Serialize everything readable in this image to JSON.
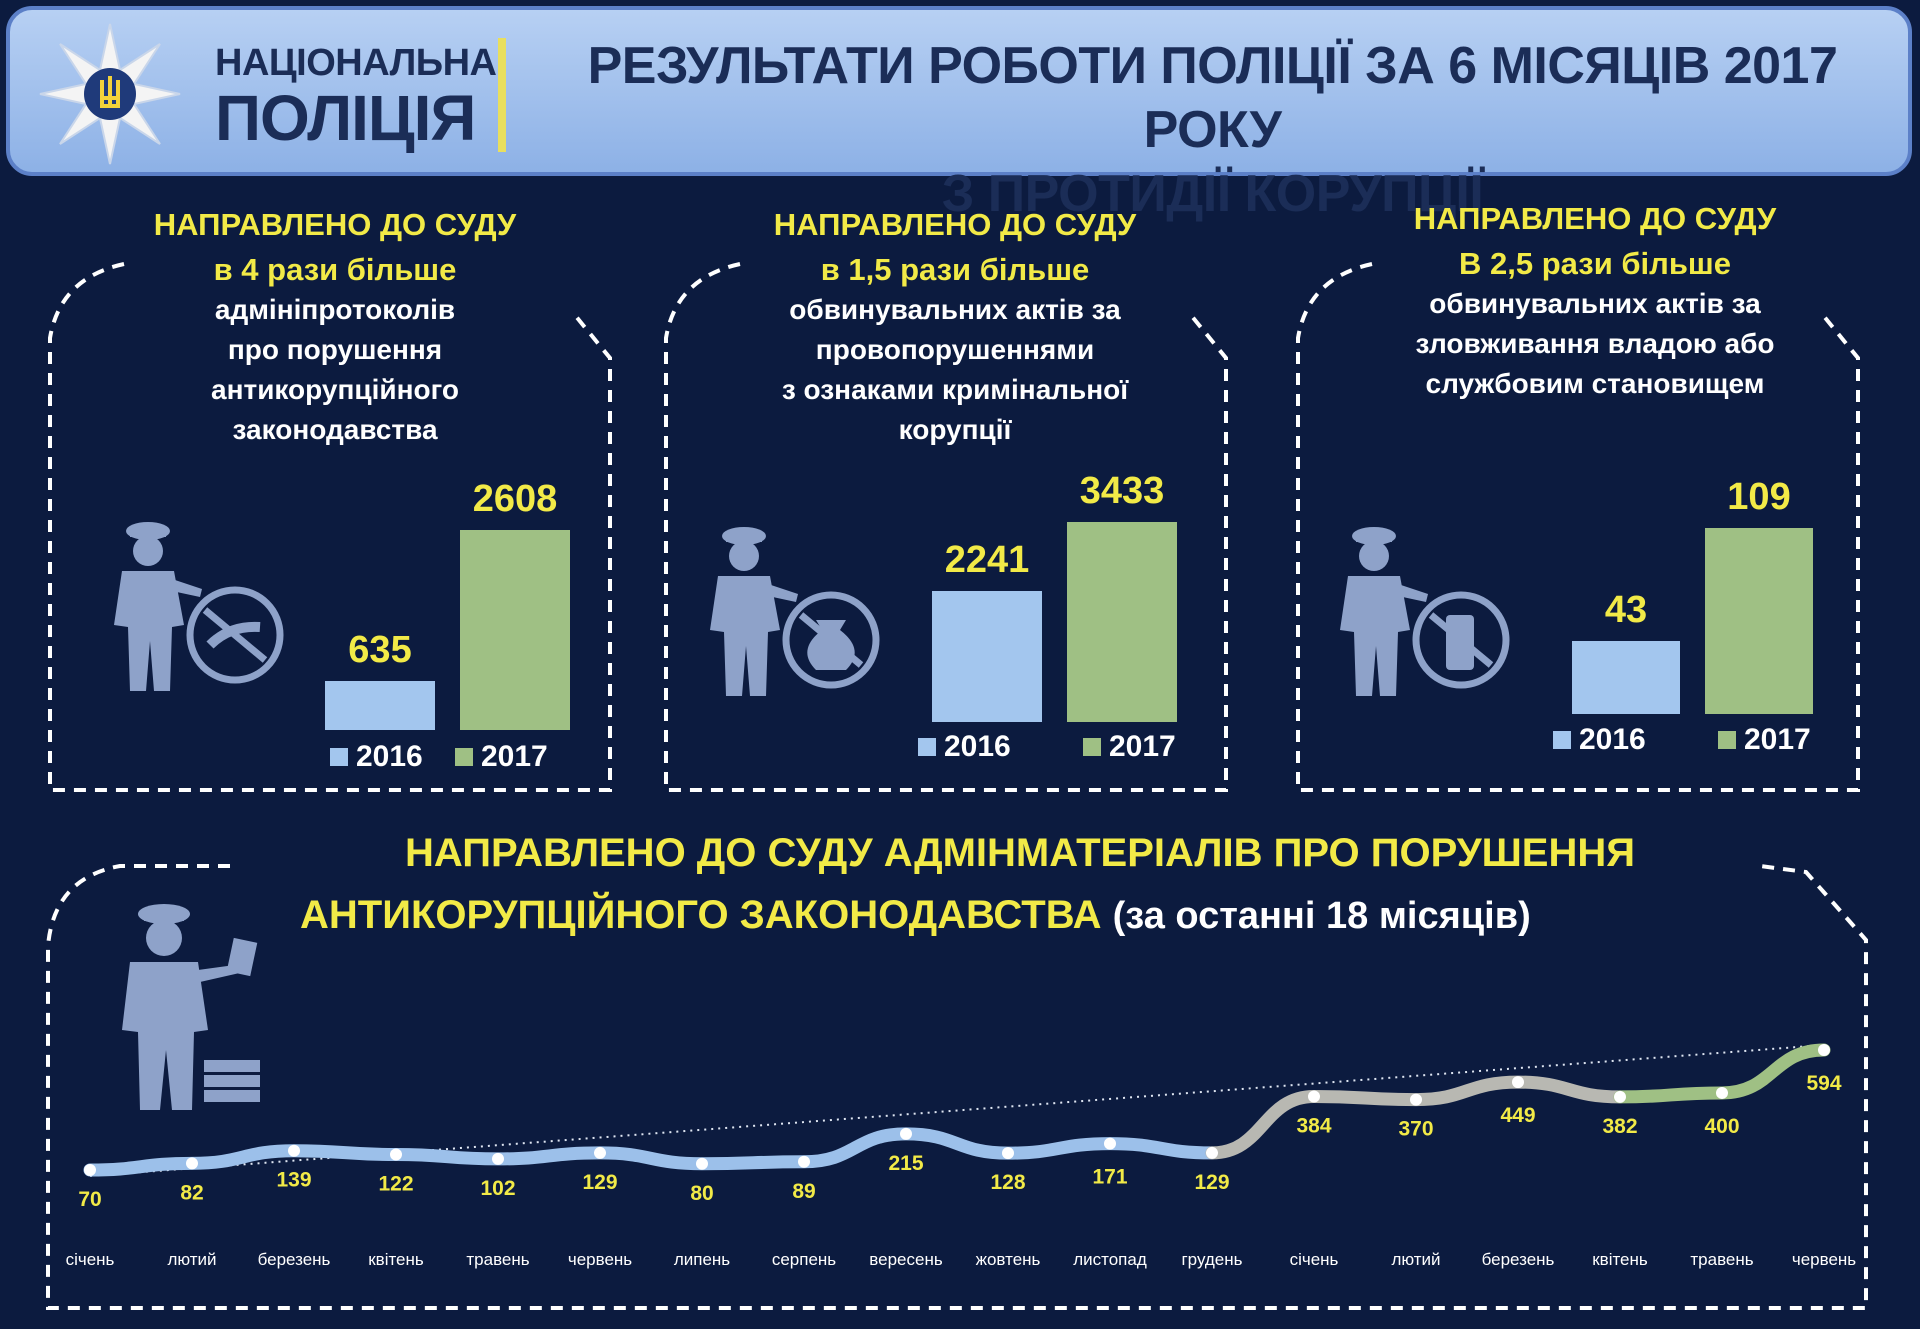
{
  "header": {
    "brand_line1": "НАЦІОНАЛЬНА",
    "brand_line2": "ПОЛІЦІЯ",
    "title_line1": "РЕЗУЛЬТАТИ РОБОТИ ПОЛІЦІЇ ЗА 6 МІСЯЦІВ 2017 РОКУ",
    "title_line2": "З ПРОТИДІЇ КОРУПЦІЇ"
  },
  "colors": {
    "bg": "#0c1b3f",
    "accent": "#f2ea47",
    "bar2016": "#a3c6ee",
    "bar2017": "#9fc084"
  },
  "panels": [
    {
      "title": "НАПРАВЛЕНО ДО  СУДУ",
      "subtitle": "в 4 рази більше",
      "lines": [
        "адмініпротоколів",
        "про порушення",
        "антикорупційного",
        "законодавства"
      ],
      "icon": "police-officer-no-bribe-icon"
    },
    {
      "title": "НАПРАВЛЕНО ДО  СУДУ",
      "subtitle": "в 1,5 рази більше",
      "lines": [
        "обвинувальних актів за",
        "провопорушеннями",
        "з ознаками кримінальної",
        "корупції"
      ],
      "icon": "police-officer-no-money-bag-icon"
    },
    {
      "title": "НАПРАВЛЕНО ДО  СУДУ",
      "subtitle": "В 2,5 рази більше",
      "lines": [
        "обвинувальних актів за",
        "зловживання владою або",
        "службовим становищем"
      ],
      "icon": "police-officer-no-cash-icon"
    }
  ],
  "chart_data": [
    {
      "type": "bar",
      "categories": [
        "2016",
        "2017"
      ],
      "values": [
        635,
        2608
      ],
      "legend": [
        "2016",
        "2017"
      ]
    },
    {
      "type": "bar",
      "categories": [
        "2016",
        "2017"
      ],
      "values": [
        2241,
        3433
      ],
      "legend": [
        "2016",
        "2017"
      ]
    },
    {
      "type": "bar",
      "categories": [
        "2016",
        "2017"
      ],
      "values": [
        43,
        109
      ],
      "legend": [
        "2016",
        "2017"
      ]
    },
    {
      "type": "line",
      "title_main": "НАПРАВЛЕНО ДО  СУДУ АДМІНМАТЕРІАЛІВ ПРО  ПОРУШЕННЯ",
      "title_main2": "АНТИКОРУПЦІЙНОГО ЗАКОНОДАВСТВА",
      "title_note": "(за останні 18 місяців)",
      "categories": [
        "січень",
        "лютий",
        "березень",
        "квітень",
        "травень",
        "червень",
        "липень",
        "серпень",
        "вересень",
        "жовтень",
        "листопад",
        "грудень",
        "січень",
        "лютий",
        "березень",
        "квітень",
        "травень",
        "червень"
      ],
      "values": [
        70,
        82,
        139,
        122,
        102,
        129,
        80,
        89,
        215,
        128,
        171,
        129,
        384,
        370,
        449,
        382,
        400,
        594
      ],
      "trendline": true,
      "ylim": [
        0,
        650
      ]
    }
  ]
}
